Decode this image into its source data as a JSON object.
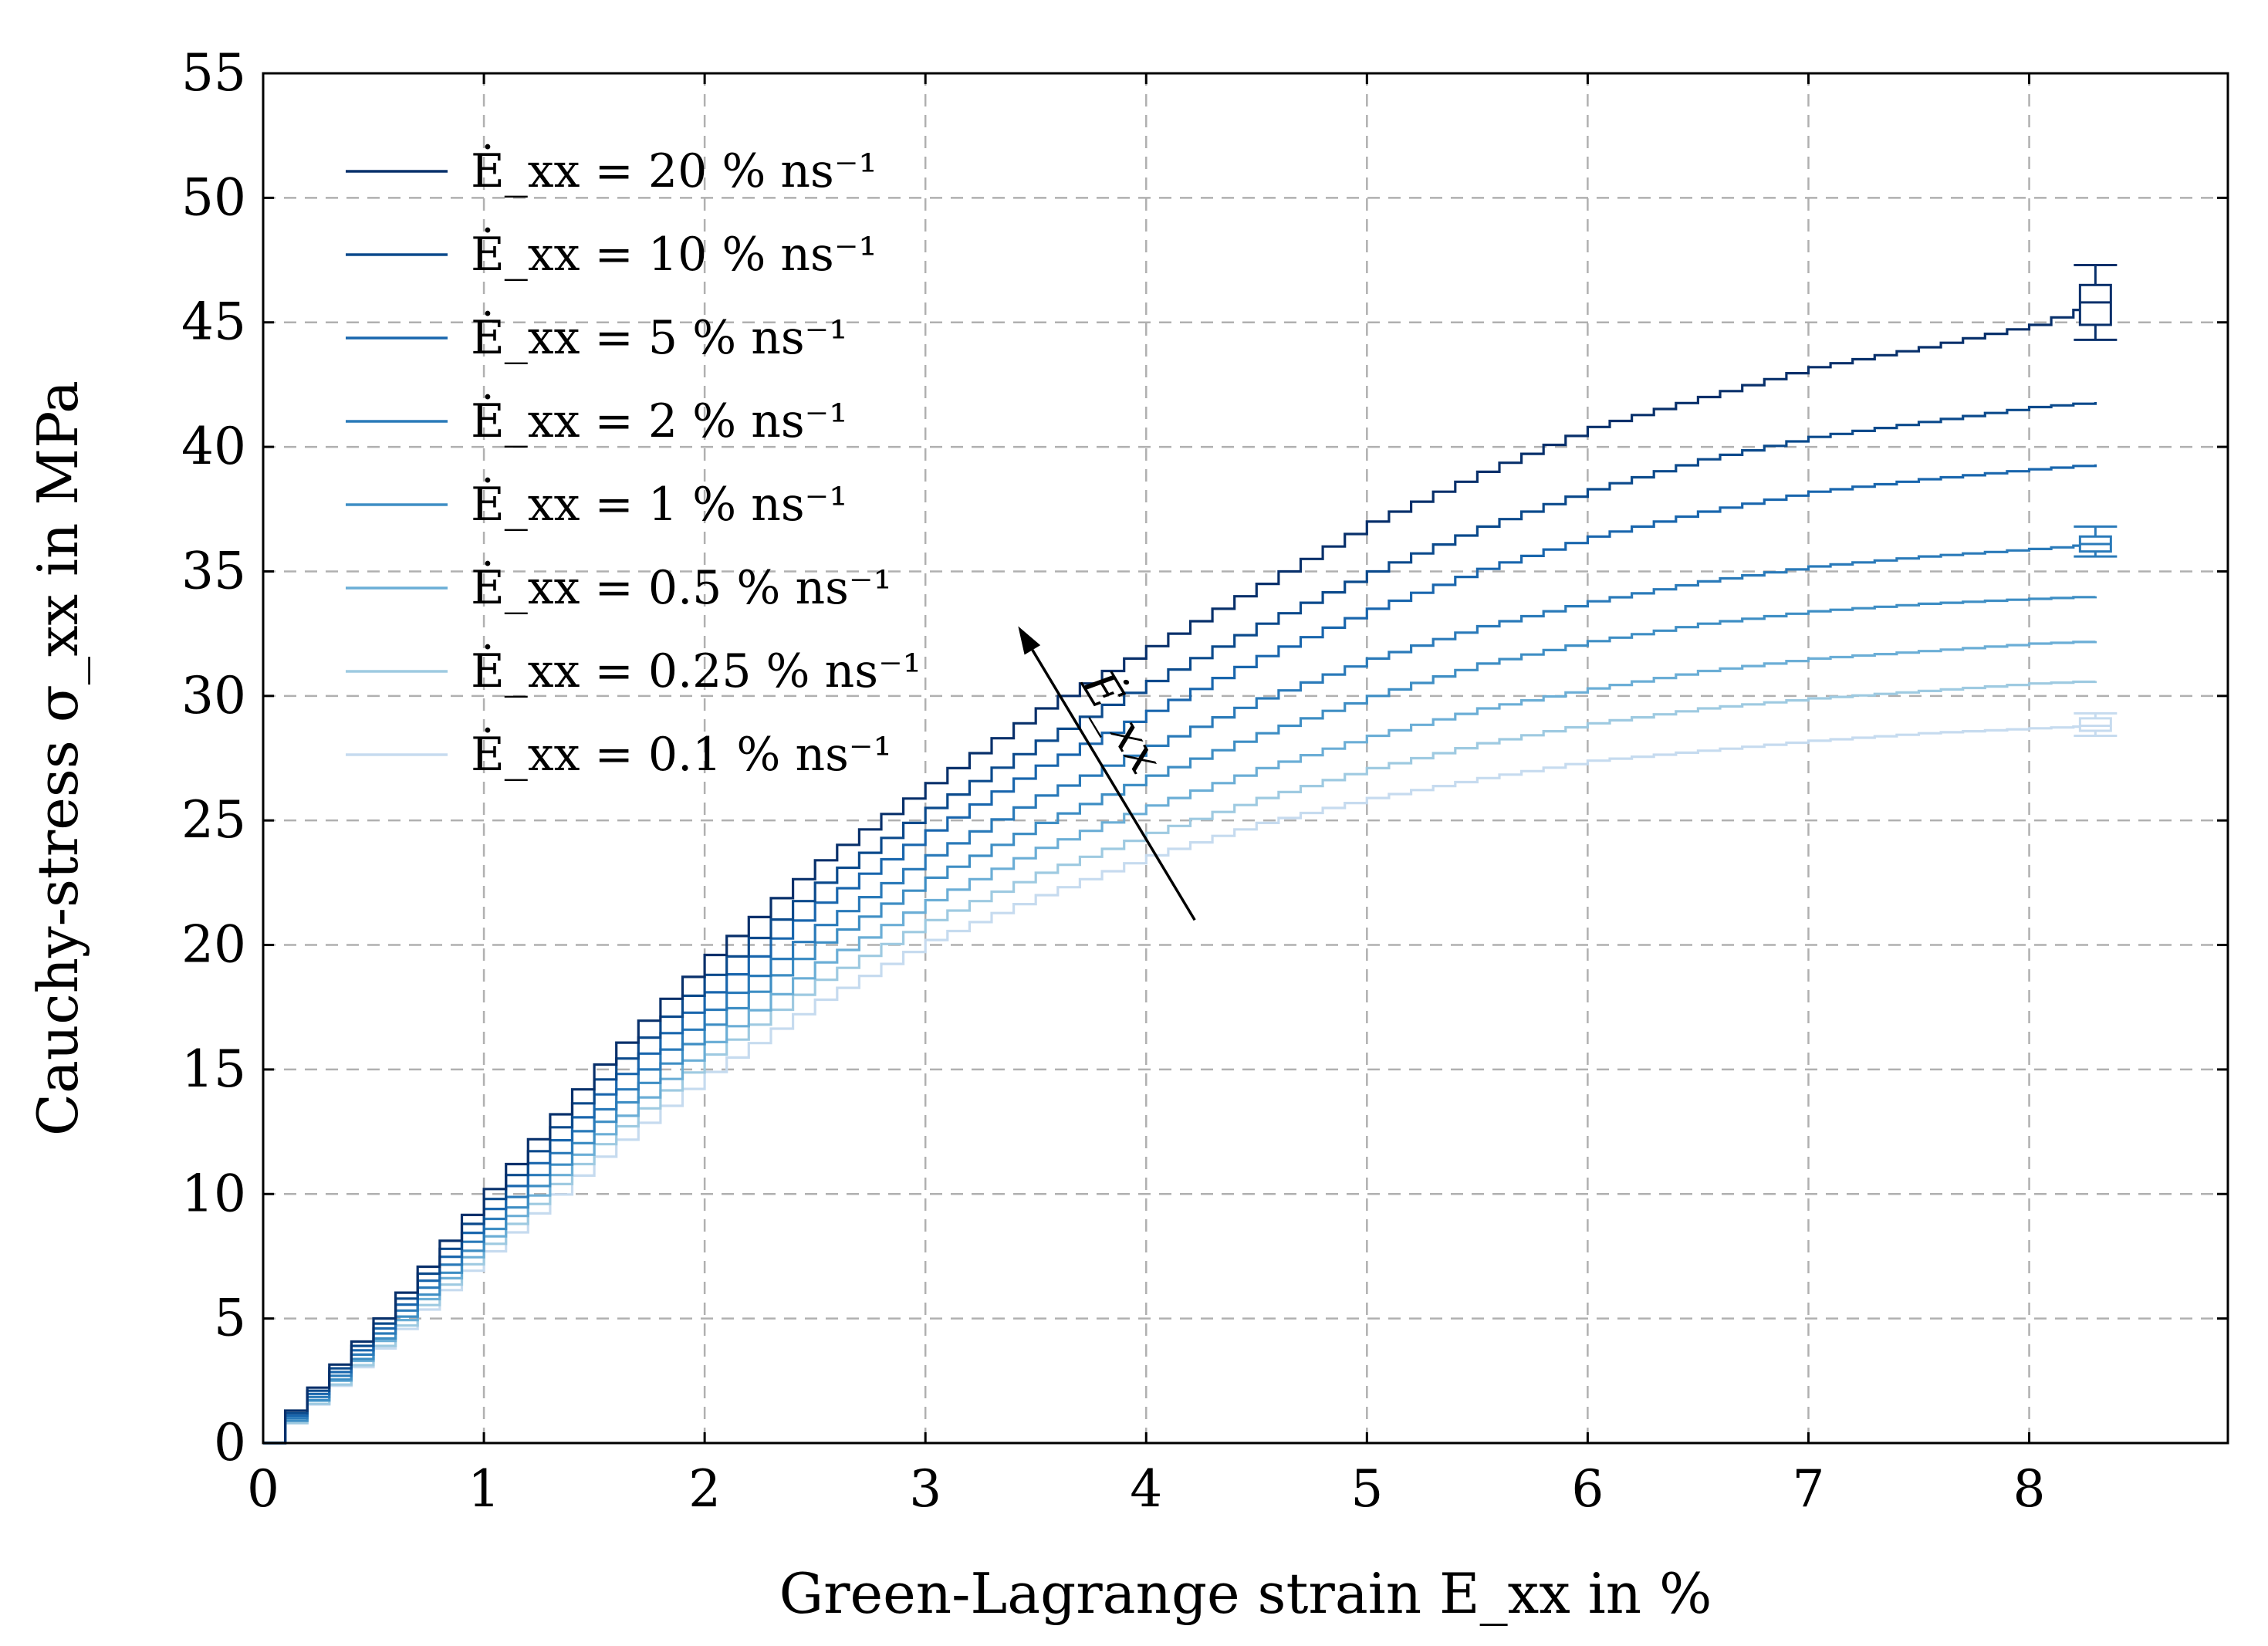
{
  "chart_data": {
    "type": "line",
    "style": "step",
    "xlabel": "Green-Lagrange strain E_xx in %",
    "ylabel": "Cauchy-stress σ_xx in MPa",
    "xlim": [
      0,
      8.9
    ],
    "ylim": [
      0,
      55
    ],
    "x_ticks": [
      0,
      1,
      2,
      3,
      4,
      5,
      6,
      7,
      8
    ],
    "y_ticks": [
      0,
      5,
      10,
      15,
      20,
      25,
      30,
      35,
      40,
      45,
      50,
      55
    ],
    "grid": true,
    "legend_position": "top-left",
    "annotation": {
      "text": "Ė_xx",
      "meaning": "arrow indicating increasing strain rate",
      "arrow_from": [
        4.22,
        21.0
      ],
      "arrow_to": [
        3.42,
        32.8
      ]
    },
    "series": [
      {
        "name": "Ė_xx = 20 % ns⁻¹",
        "color": "#08306b",
        "x": [
          0,
          0.1,
          0.5,
          1,
          1.5,
          2,
          2.5,
          3,
          3.5,
          4,
          4.5,
          5,
          5.5,
          6,
          6.5,
          7,
          7.5,
          8,
          8.3
        ],
        "y": [
          0,
          1.3,
          5.0,
          10.2,
          15.2,
          19.6,
          23.4,
          26.5,
          29.5,
          32.0,
          34.5,
          37.0,
          39.0,
          40.8,
          42.0,
          43.2,
          44.0,
          44.9,
          45.8
        ],
        "error_bar": {
          "x": 8.3,
          "mean": 45.8,
          "box": [
            44.9,
            46.5
          ],
          "whisker": [
            44.3,
            47.3
          ]
        }
      },
      {
        "name": "Ė_xx = 10 % ns⁻¹",
        "color": "#0b4a8c",
        "x": [
          0,
          0.1,
          0.5,
          1,
          1.5,
          2,
          2.5,
          3,
          3.5,
          4,
          4.5,
          5,
          5.5,
          6,
          6.5,
          7,
          7.5,
          8,
          8.3
        ],
        "y": [
          0,
          1.2,
          4.8,
          9.8,
          14.6,
          18.8,
          22.5,
          25.5,
          28.2,
          30.6,
          32.9,
          35.0,
          36.8,
          38.3,
          39.5,
          40.4,
          41.0,
          41.6,
          41.8
        ]
      },
      {
        "name": "Ė_xx = 5 % ns⁻¹",
        "color": "#1966ad",
        "x": [
          0,
          0.1,
          0.5,
          1,
          1.5,
          2,
          2.5,
          3,
          3.5,
          4,
          4.5,
          5,
          5.5,
          6,
          6.5,
          7,
          7.5,
          8,
          8.3
        ],
        "y": [
          0,
          1.1,
          4.6,
          9.4,
          14.0,
          18.1,
          21.7,
          24.6,
          27.2,
          29.4,
          31.6,
          33.5,
          35.1,
          36.4,
          37.4,
          38.2,
          38.7,
          39.1,
          39.3
        ]
      },
      {
        "name": "Ė_xx = 2 % ns⁻¹",
        "color": "#2a7ab9",
        "x": [
          0,
          0.1,
          0.5,
          1,
          1.5,
          2,
          2.5,
          3,
          3.5,
          4,
          4.5,
          5,
          5.5,
          6,
          6.5,
          7,
          7.5,
          8,
          8.3
        ],
        "y": [
          0,
          1.0,
          4.4,
          9.0,
          13.4,
          17.4,
          20.8,
          23.6,
          26.0,
          28.0,
          29.9,
          31.5,
          32.8,
          33.8,
          34.6,
          35.2,
          35.6,
          35.9,
          36.1
        ],
        "error_bar": {
          "x": 8.3,
          "mean": 36.1,
          "box": [
            35.8,
            36.4
          ],
          "whisker": [
            35.6,
            36.8
          ]
        }
      },
      {
        "name": "Ė_xx = 1 % ns⁻¹",
        "color": "#3e8ec4",
        "x": [
          0,
          0.1,
          0.5,
          1,
          1.5,
          2,
          2.5,
          3,
          3.5,
          4,
          4.5,
          5,
          5.5,
          6,
          6.5,
          7,
          7.5,
          8,
          8.3
        ],
        "y": [
          0,
          0.9,
          4.2,
          8.6,
          12.9,
          16.8,
          20.1,
          22.7,
          24.9,
          26.8,
          28.5,
          30.0,
          31.3,
          32.2,
          32.9,
          33.4,
          33.7,
          33.9,
          34.0
        ]
      },
      {
        "name": "Ė_xx = 0.5 % ns⁻¹",
        "color": "#6baed6",
        "x": [
          0,
          0.1,
          0.5,
          1,
          1.5,
          2,
          2.5,
          3,
          3.5,
          4,
          4.5,
          5,
          5.5,
          6,
          6.5,
          7,
          7.5,
          8,
          8.3
        ],
        "y": [
          0,
          0.9,
          4.1,
          8.3,
          12.4,
          16.1,
          19.3,
          21.8,
          23.9,
          25.6,
          27.1,
          28.4,
          29.5,
          30.3,
          31.0,
          31.5,
          31.8,
          32.1,
          32.2
        ]
      },
      {
        "name": "Ė_xx = 0.25 % ns⁻¹",
        "color": "#9ecae1",
        "x": [
          0,
          0.1,
          0.5,
          1,
          1.5,
          2,
          2.5,
          3,
          3.5,
          4,
          4.5,
          5,
          5.5,
          6,
          6.5,
          7,
          7.5,
          8,
          8.3
        ],
        "y": [
          0,
          0.8,
          3.9,
          8.0,
          12.0,
          15.6,
          18.6,
          21.0,
          22.9,
          24.5,
          25.9,
          27.1,
          28.1,
          28.9,
          29.5,
          29.9,
          30.2,
          30.5,
          30.6
        ]
      },
      {
        "name": "Ė_xx = 0.1 % ns⁻¹",
        "color": "#c6dbef",
        "x": [
          0,
          0.1,
          0.5,
          1,
          1.5,
          2,
          2.5,
          3,
          3.5,
          4,
          4.5,
          5,
          5.5,
          6,
          6.5,
          7,
          7.5,
          8,
          8.3
        ],
        "y": [
          0,
          0.8,
          3.8,
          7.7,
          11.5,
          14.9,
          17.8,
          20.2,
          22.0,
          23.6,
          24.9,
          25.9,
          26.7,
          27.4,
          27.8,
          28.2,
          28.5,
          28.7,
          28.8
        ],
        "error_bar": {
          "x": 8.3,
          "mean": 28.8,
          "box": [
            28.6,
            29.1
          ],
          "whisker": [
            28.4,
            29.3
          ]
        }
      }
    ]
  }
}
